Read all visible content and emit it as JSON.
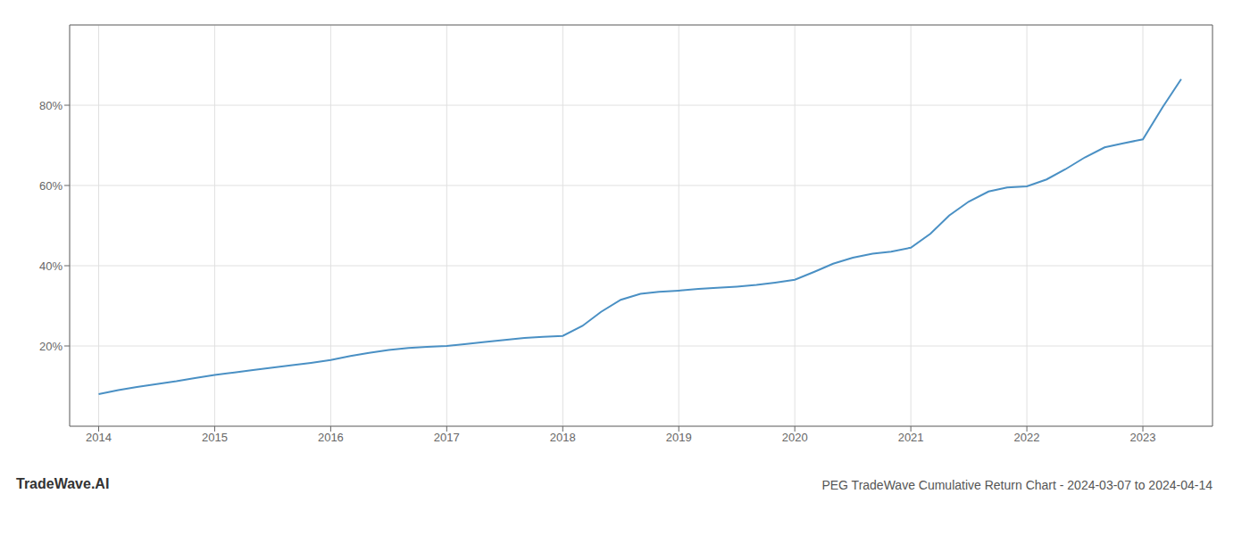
{
  "chart_data": {
    "type": "line",
    "title": "PEG TradeWave Cumulative Return Chart - 2024-03-07 to 2024-04-14",
    "annotations": [
      "TradeWave.AI"
    ],
    "x": [
      2014.0,
      2014.17,
      2014.33,
      2014.5,
      2014.67,
      2014.83,
      2015.0,
      2015.17,
      2015.33,
      2015.5,
      2015.67,
      2015.83,
      2016.0,
      2016.17,
      2016.33,
      2016.5,
      2016.67,
      2016.83,
      2017.0,
      2017.17,
      2017.33,
      2017.5,
      2017.67,
      2017.83,
      2018.0,
      2018.17,
      2018.33,
      2018.5,
      2018.67,
      2018.83,
      2019.0,
      2019.17,
      2019.33,
      2019.5,
      2019.67,
      2019.83,
      2020.0,
      2020.17,
      2020.33,
      2020.5,
      2020.67,
      2020.83,
      2021.0,
      2021.17,
      2021.33,
      2021.5,
      2021.67,
      2021.83,
      2022.0,
      2022.17,
      2022.33,
      2022.5,
      2022.67,
      2022.83,
      2023.0,
      2023.17,
      2023.33
    ],
    "values": [
      8.0,
      9.0,
      9.8,
      10.5,
      11.2,
      12.0,
      12.8,
      13.4,
      14.0,
      14.6,
      15.2,
      15.8,
      16.5,
      17.5,
      18.3,
      19.0,
      19.5,
      19.8,
      20.0,
      20.5,
      21.0,
      21.5,
      22.0,
      22.3,
      22.5,
      25.0,
      28.5,
      31.5,
      33.0,
      33.5,
      33.8,
      34.2,
      34.5,
      34.8,
      35.2,
      35.8,
      36.5,
      38.5,
      40.5,
      42.0,
      43.0,
      43.5,
      44.5,
      48.0,
      52.5,
      56.0,
      58.5,
      59.5,
      59.8,
      61.5,
      64.0,
      67.0,
      69.5,
      70.5,
      71.5,
      79.5,
      86.5
    ],
    "color": "#4a90c4",
    "xlim": [
      2013.75,
      2023.6
    ],
    "ylim": [
      0,
      100
    ],
    "xticks": [
      2014,
      2015,
      2016,
      2017,
      2018,
      2019,
      2020,
      2021,
      2022,
      2023
    ],
    "yticks": [
      {
        "value": 20,
        "label": "20%"
      },
      {
        "value": 40,
        "label": "40%"
      },
      {
        "value": 60,
        "label": "60%"
      },
      {
        "value": 80,
        "label": "80%"
      }
    ],
    "grid": true
  }
}
